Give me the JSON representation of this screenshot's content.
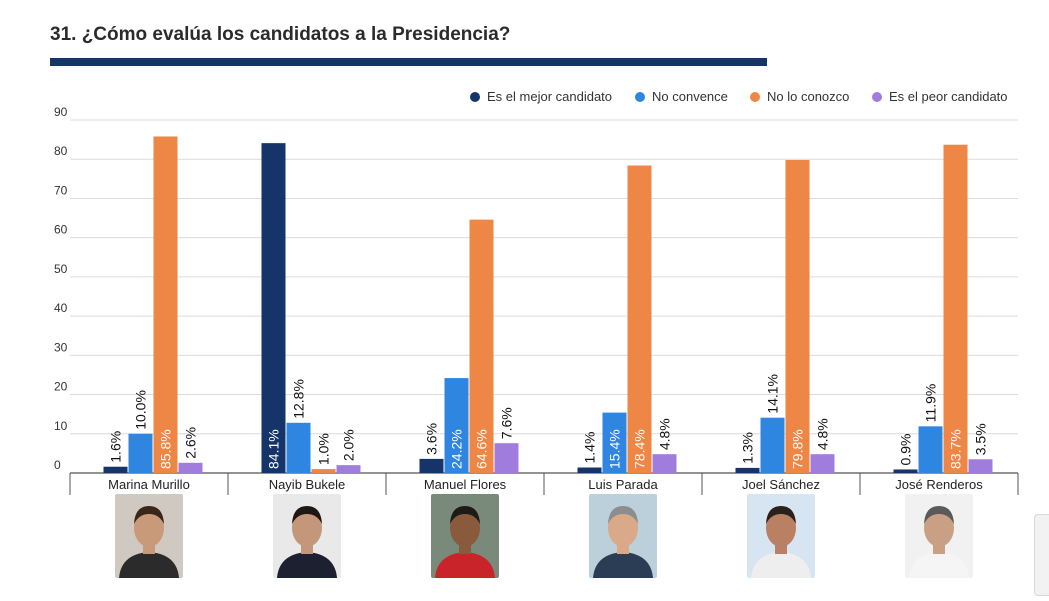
{
  "title": "31. ¿Cómo evalúa los candidatos a la Presidencia?",
  "colors": {
    "best": "#14346a",
    "unconvinced": "#2f86e0",
    "unknown": "#ee8646",
    "worst": "#a07ddc",
    "rule": "#14346a"
  },
  "chart_data": {
    "type": "bar",
    "title": "31. ¿Cómo evalúa los candidatos a la Presidencia?",
    "xlabel": "",
    "ylabel": "",
    "ylim": [
      0,
      90
    ],
    "yticks": [
      0,
      10,
      20,
      30,
      40,
      50,
      60,
      70,
      80,
      90
    ],
    "grid": true,
    "legend_position": "top-right",
    "categories": [
      "Marina Murillo",
      "Nayib Bukele",
      "Manuel Flores",
      "Luis Parada",
      "Joel Sánchez",
      "José Renderos"
    ],
    "series": [
      {
        "name": "Es el mejor candidato",
        "color": "#14346a",
        "values": [
          1.6,
          84.1,
          3.6,
          1.4,
          1.3,
          0.9
        ],
        "labels": [
          "1.6%",
          "84.1%",
          "3.6%",
          "1.4%",
          "1.3%",
          "0.9%"
        ]
      },
      {
        "name": "No convence",
        "color": "#2f86e0",
        "values": [
          10.0,
          12.8,
          24.2,
          15.4,
          14.1,
          11.9
        ],
        "labels": [
          "10.0%",
          "12.8%",
          "24.2%",
          "15.4%",
          "14.1%",
          "11.9%"
        ]
      },
      {
        "name": "No lo conozco",
        "color": "#ee8646",
        "values": [
          85.8,
          1.0,
          64.6,
          78.4,
          79.8,
          83.7
        ],
        "labels": [
          "85.8%",
          "1.0%",
          "64.6%",
          "78.4%",
          "79.8%",
          "83.7%"
        ]
      },
      {
        "name": "Es el peor candidato",
        "color": "#a07ddc",
        "values": [
          2.6,
          2.0,
          7.6,
          4.8,
          4.8,
          3.5
        ],
        "labels": [
          "2.6%",
          "2.0%",
          "7.6%",
          "4.8%",
          "4.8%",
          "3.5%"
        ]
      }
    ]
  },
  "photos": [
    {
      "name": "Marina Murillo",
      "bg": "#cfc9c2",
      "skin": "#c99a7a",
      "hair": "#3a2618",
      "shirt": "#2b2b2b"
    },
    {
      "name": "Nayib Bukele",
      "bg": "#e9e9e9",
      "skin": "#c4977a",
      "hair": "#1f1712",
      "shirt": "#1c2030"
    },
    {
      "name": "Manuel Flores",
      "bg": "#7a8a7a",
      "skin": "#8a5a3c",
      "hair": "#1e1a18",
      "shirt": "#c8242a"
    },
    {
      "name": "Luis Parada",
      "bg": "#bcd0dc",
      "skin": "#d9a98a",
      "hair": "#8d8d8d",
      "shirt": "#2b3d55"
    },
    {
      "name": "Joel Sánchez",
      "bg": "#d7e4f2",
      "skin": "#b98063",
      "hair": "#2a211c",
      "shirt": "#eeeeee"
    },
    {
      "name": "José Renderos",
      "bg": "#f1f1f1",
      "skin": "#caa084",
      "hair": "#5a5a5a",
      "shirt": "#f5f5f5"
    }
  ]
}
